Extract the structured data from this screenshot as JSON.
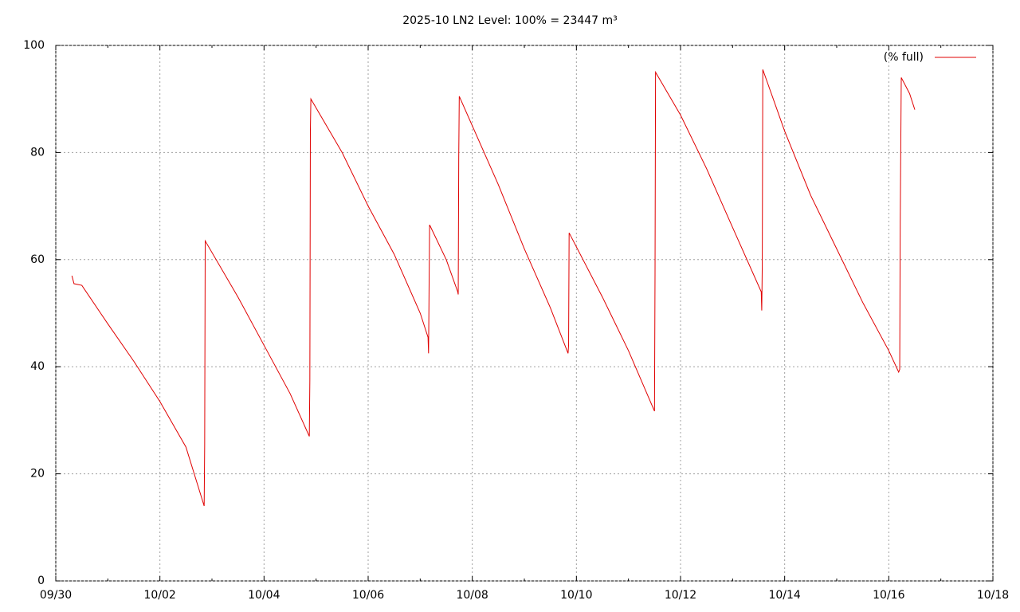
{
  "chart_data": {
    "type": "line",
    "title": "2025-10 LN2 Level: 100% = 23447 m³",
    "x": [
      0.31,
      0.35,
      0.5,
      1.0,
      1.5,
      2.0,
      2.5,
      2.85,
      2.86,
      2.87,
      3.5,
      4.0,
      4.5,
      4.87,
      4.88,
      4.89,
      4.9,
      5.5,
      6.0,
      6.5,
      7.0,
      7.15,
      7.16,
      7.18,
      7.5,
      7.72,
      7.73,
      7.74,
      7.75,
      8.5,
      9.0,
      9.5,
      9.84,
      9.85,
      9.86,
      10.5,
      11.0,
      11.5,
      11.51,
      11.52,
      12.0,
      12.5,
      13.0,
      13.55,
      13.56,
      13.57,
      13.58,
      14.0,
      14.5,
      15.0,
      15.5,
      16.0,
      16.19,
      16.21,
      16.22,
      16.24,
      16.4,
      16.5
    ],
    "series": [
      {
        "name": "(% full)",
        "color": "#e00000",
        "values": [
          57,
          55.5,
          55.2,
          48,
          41,
          33.5,
          25,
          14,
          25.5,
          63.5,
          53,
          44,
          35,
          27,
          37.5,
          84,
          90,
          80,
          70,
          61,
          50,
          45.5,
          42.5,
          66.5,
          60,
          54,
          53.5,
          79,
          90.5,
          74,
          62,
          51,
          42.5,
          44,
          65,
          53,
          43,
          31.7,
          57,
          95,
          87,
          77,
          66,
          54,
          50.5,
          59,
          95.5,
          84,
          72,
          62,
          52,
          43,
          39,
          39.5,
          67,
          94,
          91,
          88
        ]
      }
    ],
    "xlim": [
      0,
      18
    ],
    "xticks": [
      {
        "value": 0,
        "label": "09/30"
      },
      {
        "value": 2,
        "label": "10/02"
      },
      {
        "value": 4,
        "label": "10/04"
      },
      {
        "value": 6,
        "label": "10/06"
      },
      {
        "value": 8,
        "label": "10/08"
      },
      {
        "value": 10,
        "label": "10/10"
      },
      {
        "value": 12,
        "label": "10/12"
      },
      {
        "value": 14,
        "label": "10/14"
      },
      {
        "value": 16,
        "label": "10/16"
      },
      {
        "value": 18,
        "label": "10/18"
      }
    ],
    "ylim": [
      0,
      100
    ],
    "yticks": [
      0,
      20,
      40,
      60,
      80,
      100
    ],
    "grid": true,
    "legend": "top-right"
  }
}
